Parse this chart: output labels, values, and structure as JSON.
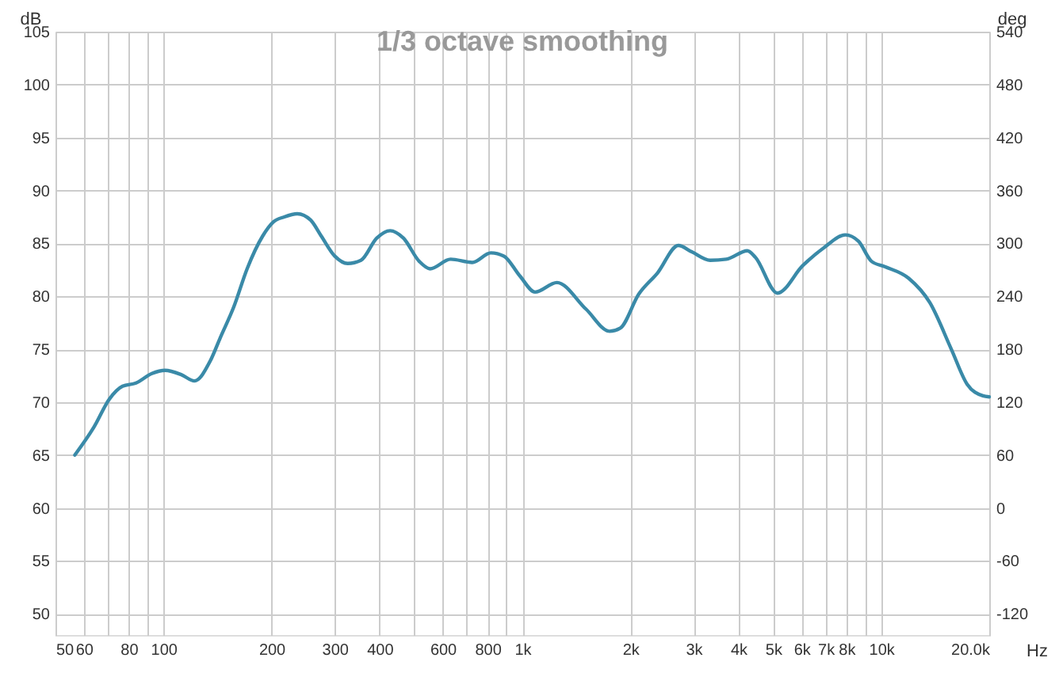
{
  "chart_data": {
    "type": "line",
    "title": "1/3 octave smoothing",
    "xlabel": "Hz",
    "ylabel": "dB",
    "y2label": "deg",
    "log": "x",
    "grid": true,
    "marker": "none",
    "line_style": "solid",
    "xlim": [
      50,
      20000
    ],
    "xticks": [
      50,
      60,
      {
        "value": 70,
        "label": null
      },
      80,
      {
        "value": 90,
        "label": null
      },
      100,
      200,
      300,
      400,
      {
        "value": 500,
        "label": null
      },
      600,
      {
        "value": 700,
        "label": null
      },
      800,
      {
        "value": 900,
        "label": null
      },
      {
        "value": 1000,
        "label": "1k"
      },
      {
        "value": 2000,
        "label": "2k"
      },
      {
        "value": 3000,
        "label": "3k"
      },
      {
        "value": 4000,
        "label": "4k"
      },
      {
        "value": 5000,
        "label": "5k"
      },
      {
        "value": 6000,
        "label": "6k"
      },
      {
        "value": 7000,
        "label": "7k"
      },
      {
        "value": 8000,
        "label": "8k"
      },
      {
        "value": 9000,
        "label": null
      },
      {
        "value": 10000,
        "label": "10k"
      },
      {
        "value": 20000,
        "label": "20.0k"
      }
    ],
    "ylim": [
      48,
      105
    ],
    "yticks": [
      50,
      55,
      60,
      65,
      70,
      75,
      80,
      85,
      90,
      95,
      100,
      105
    ],
    "y2lim": [
      -144,
      540
    ],
    "y2ticks": [
      -120,
      -60,
      0,
      60,
      120,
      180,
      240,
      300,
      360,
      420,
      480,
      540
    ],
    "series": [
      {
        "color": "#3a8aa8",
        "x": [
          56.6,
          63.9,
          70.7,
          76.9,
          83.8,
          92.8,
          101,
          112,
          122,
          135,
          144,
          157,
          171,
          189,
          202,
          217,
          236,
          257,
          275,
          300,
          326,
          355,
          393,
          428,
          466,
          516,
          553,
          631,
          725,
          817,
          888,
          985,
          1085,
          1248,
          1503,
          1750,
          1875,
          2110,
          2380,
          2720,
          2965,
          3337,
          3700,
          4236,
          4456,
          5140,
          6045,
          6930,
          7940,
          8640,
          9400,
          10230,
          11930,
          13660,
          15680,
          17350,
          19200,
          20000
        ],
        "values": [
          65,
          67.6,
          70.3,
          71.5,
          71.8,
          72.7,
          73,
          72.6,
          72,
          73.9,
          76.1,
          79,
          82.6,
          85.7,
          87,
          87.5,
          87.8,
          87.2,
          85.7,
          83.8,
          83.1,
          83.4,
          85.5,
          86.2,
          85.5,
          83.3,
          82.6,
          83.5,
          83.2,
          84.1,
          83.8,
          81.9,
          80.4,
          81.3,
          78.8,
          76.7,
          77,
          80.2,
          82.2,
          84.8,
          84.2,
          83.4,
          83.5,
          84.3,
          83.7,
          80.3,
          82.9,
          84.6,
          85.8,
          85.2,
          83.3,
          82.8,
          81.7,
          79.4,
          75,
          71.7,
          70.6,
          70.5
        ]
      }
    ]
  }
}
